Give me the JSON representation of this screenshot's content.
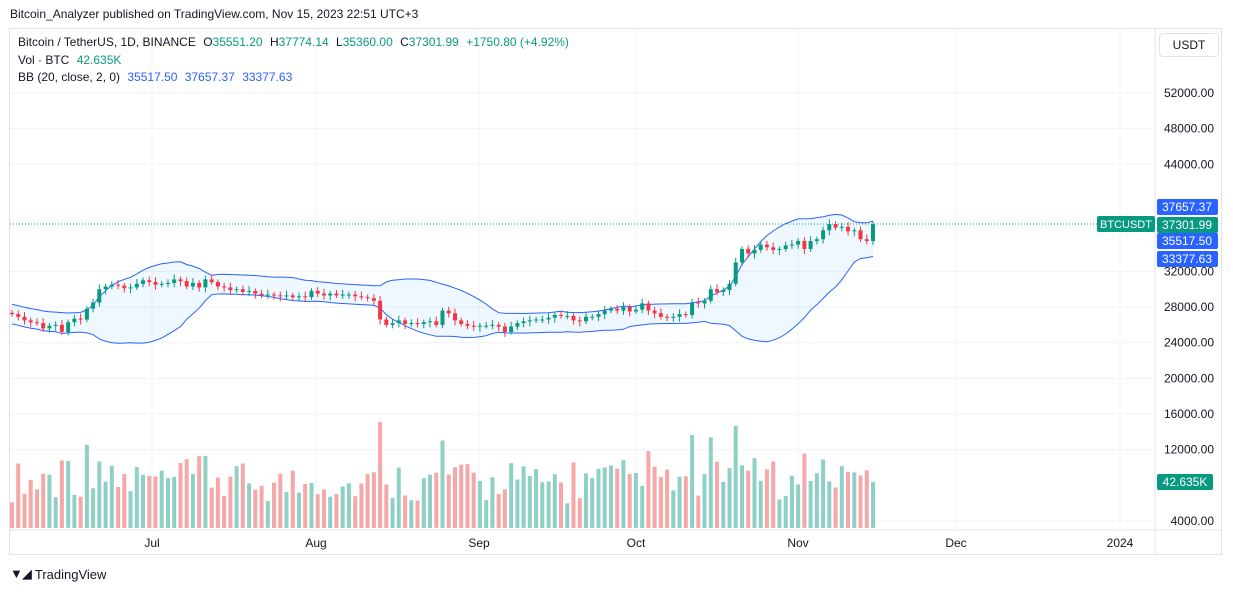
{
  "header": {
    "publisher": "Bitcoin_Analyzer published on TradingView.com, Nov 15, 2023 22:51 UTC+3"
  },
  "legend": {
    "symbol": "Bitcoin / TetherUS, 1D, BINANCE",
    "o": "35551.20",
    "h": "37774.14",
    "l": "35360.00",
    "c": "37301.99",
    "change": "+1750.80 (+4.92%)",
    "vol_label": "Vol · BTC",
    "vol_value": "42.635K",
    "bb_label": "BB (20, close, 2, 0)",
    "bb_basis": "35517.50",
    "bb_upper": "37657.37",
    "bb_lower": "33377.63"
  },
  "currency": "USDT",
  "footer": {
    "brand": "TradingView"
  },
  "colors": {
    "up": "#089981",
    "down": "#f23645",
    "bb": "#2962ff",
    "vol_up": "#8fd0c6",
    "vol_down": "#f5a8a7"
  },
  "chart_data": {
    "type": "candlestick",
    "symbol": "BTCUSDT",
    "price_axis": {
      "ticks": [
        4000,
        12000,
        16000,
        20000,
        24000,
        28000,
        32000,
        44000,
        48000,
        52000
      ],
      "labels": [
        "4000.00",
        "12000.00",
        "16000.00",
        "20000.00",
        "24000.00",
        "28000.00",
        "32000.00",
        "44000.00",
        "48000.00",
        "52000.00"
      ]
    },
    "x_axis": {
      "labels": [
        "Jul",
        "Aug",
        "Sep",
        "Oct",
        "Nov",
        "Dec",
        "2024"
      ]
    },
    "price_badges": [
      {
        "name": "bb-upper",
        "text": "37657.37",
        "value": 37657.37,
        "color": "#2962ff"
      },
      {
        "name": "last-price",
        "text": "37301.99",
        "value": 37301.99,
        "color": "#089981"
      },
      {
        "name": "bb-basis",
        "text": "35517.50",
        "value": 35517.5,
        "color": "#2962ff"
      },
      {
        "name": "bb-lower",
        "text": "33377.63",
        "value": 33377.63,
        "color": "#2962ff"
      }
    ],
    "symbol_badge": {
      "text": "BTCUSDT"
    },
    "volume_badge": {
      "text": "42.635K"
    },
    "series": [
      {
        "name": "close",
        "closes": [
          27200,
          26900,
          26500,
          26300,
          26200,
          25600,
          25900,
          26000,
          25200,
          26300,
          26700,
          26600,
          27800,
          28500,
          30000,
          30300,
          30500,
          30400,
          30100,
          30200,
          30600,
          31000,
          30800,
          30500,
          30600,
          30700,
          31100,
          30900,
          30300,
          30700,
          30200,
          31100,
          30800,
          30300,
          30200,
          29900,
          30000,
          29700,
          29800,
          29500,
          29300,
          29400,
          29300,
          29200,
          29300,
          29100,
          29200,
          29100,
          29800,
          29500,
          29300,
          29500,
          29300,
          29400,
          29400,
          29200,
          29100,
          29000,
          28700,
          26600,
          26000,
          26200,
          26500,
          26100,
          26200,
          26100,
          26300,
          26400,
          26000,
          27600,
          27300,
          26500,
          26100,
          25900,
          25800,
          25900,
          25900,
          26000,
          25800,
          25200,
          25800,
          26200,
          26400,
          26500,
          26600,
          26600,
          26800,
          27100,
          27000,
          27000,
          26500,
          26400,
          26900,
          26900,
          27200,
          27600,
          27800,
          27600,
          28000,
          27500,
          27700,
          28400,
          27600,
          27300,
          26900,
          26800,
          26900,
          27200,
          27100,
          28500,
          28400,
          28700,
          30000,
          29700,
          29900,
          30600,
          33000,
          34500,
          34000,
          34400,
          35000,
          34700,
          34400,
          34500,
          34900,
          35000,
          35400,
          34500,
          35400,
          35600,
          36600,
          37300,
          36900,
          37000,
          36500,
          36600,
          35600,
          35400,
          37302
        ]
      }
    ],
    "volume": {
      "unit": "BTC",
      "last": 42635
    }
  }
}
